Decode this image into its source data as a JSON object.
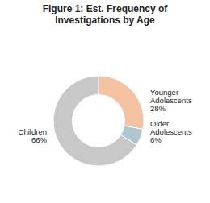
{
  "chart_data": {
    "type": "donut",
    "title": "Figure 1: Est. Frequency of\nInvestigations by Age",
    "categories": [
      "Younger\nAdolescents",
      "Older\nAdolescents",
      "Children"
    ],
    "values": [
      28,
      6,
      66
    ],
    "value_labels": [
      "28%",
      "6%",
      "66%"
    ],
    "colors": [
      "#f4c2a1",
      "#aec6cf",
      "#c8c8c8"
    ],
    "data_labels": true
  }
}
